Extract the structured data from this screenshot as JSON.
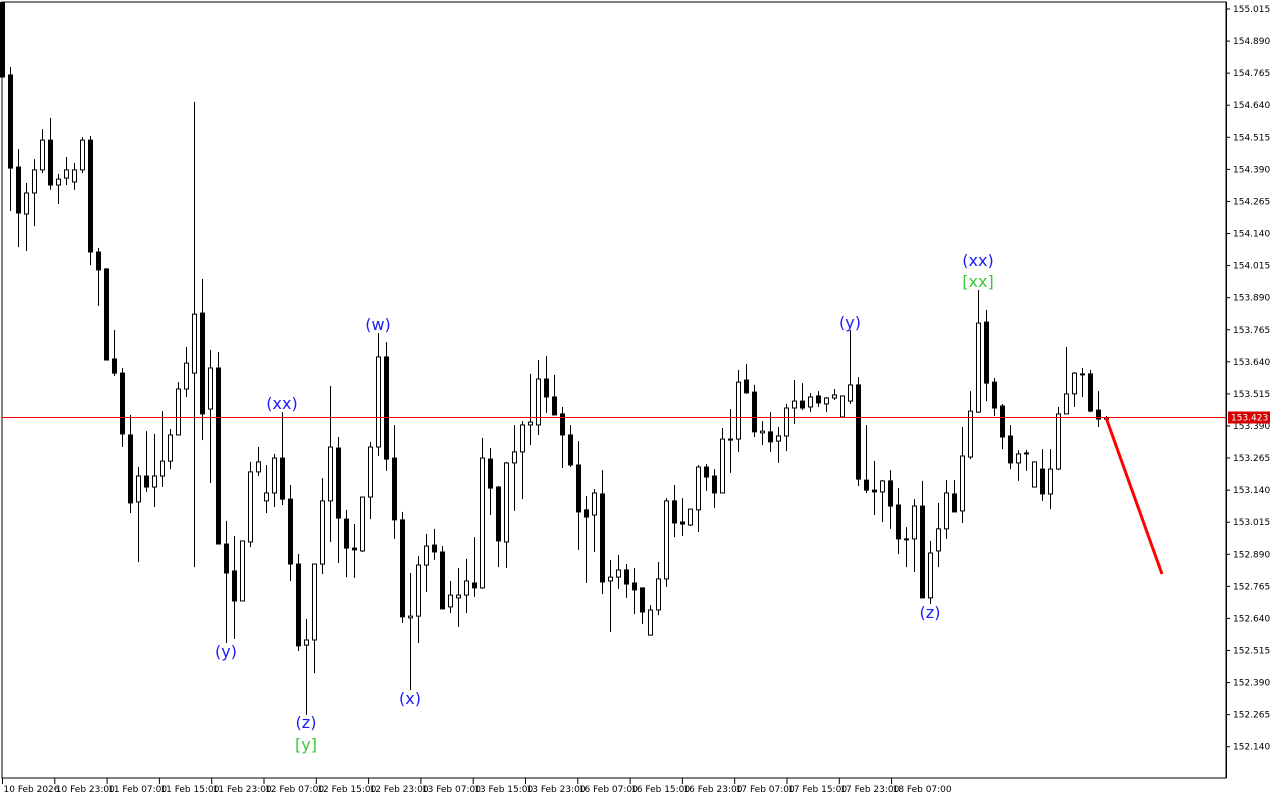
{
  "chart_data": {
    "type": "candlestick",
    "y_axis": {
      "ticks": [
        "155.015",
        "154.890",
        "154.765",
        "154.640",
        "154.515",
        "154.390",
        "154.265",
        "154.140",
        "154.015",
        "153.890",
        "153.765",
        "153.640",
        "153.515",
        "153.390",
        "153.265",
        "153.140",
        "153.015",
        "152.890",
        "152.765",
        "152.640",
        "152.515",
        "152.390",
        "152.265",
        "152.140"
      ],
      "ylim": [
        152.05,
        155.05
      ]
    },
    "x_axis": {
      "ticks": [
        "10 Feb 2026",
        "10 Feb 23:00",
        "11 Feb 07:00",
        "11 Feb 15:00",
        "11 Feb 23:00",
        "12 Feb 07:00",
        "12 Feb 15:00",
        "12 Feb 23:00",
        "13 Feb 07:00",
        "13 Feb 15:00",
        "13 Feb 23:00",
        "16 Feb 07:00",
        "16 Feb 15:00",
        "16 Feb 23:00",
        "17 Feb 07:00",
        "17 Feb 15:00",
        "17 Feb 23:00",
        "18 Feb 07:00"
      ]
    },
    "current_price": {
      "value": 153.423,
      "label": "153.423",
      "color": "#ff0000"
    },
    "candle_colors": {
      "bull_fill": "#ffffff",
      "bear_fill": "#000000",
      "outline": "#000000"
    },
    "ohlc": [
      [
        155.04,
        155.04,
        154.75,
        154.75
      ],
      [
        154.758,
        154.789,
        154.228,
        154.395
      ],
      [
        154.399,
        154.469,
        154.087,
        154.22
      ],
      [
        154.216,
        154.337,
        154.072,
        154.298
      ],
      [
        154.298,
        154.43,
        154.169,
        154.388
      ],
      [
        154.388,
        154.547,
        154.376,
        154.504
      ],
      [
        154.504,
        154.59,
        154.31,
        154.329
      ],
      [
        154.329,
        154.372,
        154.255,
        154.352
      ],
      [
        154.356,
        154.438,
        154.329,
        154.388
      ],
      [
        154.341,
        154.415,
        154.31,
        154.388
      ],
      [
        154.388,
        154.516,
        154.376,
        154.504
      ],
      [
        154.504,
        154.52,
        154.017,
        154.068
      ],
      [
        154.068,
        154.084,
        153.858,
        153.998
      ],
      [
        154.002,
        154.005,
        153.647,
        153.647
      ],
      [
        153.651,
        153.764,
        153.585,
        153.596
      ],
      [
        153.596,
        153.616,
        153.308,
        153.359
      ],
      [
        153.355,
        153.433,
        153.051,
        153.09
      ],
      [
        153.094,
        153.23,
        152.86,
        153.195
      ],
      [
        153.195,
        153.37,
        153.133,
        153.152
      ],
      [
        153.152,
        153.359,
        153.074,
        153.195
      ],
      [
        153.195,
        153.448,
        153.152,
        153.253
      ],
      [
        153.253,
        153.378,
        153.222,
        153.355
      ],
      [
        153.355,
        153.561,
        153.355,
        153.534
      ],
      [
        153.534,
        153.698,
        153.503,
        153.635
      ],
      [
        153.596,
        154.653,
        152.84,
        153.826
      ],
      [
        153.83,
        153.963,
        153.335,
        153.437
      ],
      [
        153.456,
        153.686,
        153.168,
        153.616
      ],
      [
        153.616,
        153.678,
        152.93,
        152.93
      ],
      [
        152.93,
        153.02,
        152.544,
        152.817
      ],
      [
        152.825,
        152.961,
        152.56,
        152.708
      ],
      [
        152.708,
        152.942,
        152.708,
        152.942
      ],
      [
        152.938,
        153.25,
        152.918,
        153.211
      ],
      [
        153.211,
        153.308,
        153.195,
        153.25
      ],
      [
        153.098,
        153.238,
        153.051,
        153.129
      ],
      [
        153.129,
        153.281,
        153.074,
        153.265
      ],
      [
        153.265,
        153.444,
        153.082,
        153.105
      ],
      [
        153.105,
        153.16,
        152.786,
        152.852
      ],
      [
        152.852,
        152.891,
        152.513,
        152.533
      ],
      [
        152.536,
        152.638,
        152.264,
        152.556
      ],
      [
        152.556,
        152.852,
        152.427,
        152.852
      ],
      [
        152.852,
        153.187,
        152.813,
        153.098
      ],
      [
        153.098,
        153.546,
        152.938,
        153.308
      ],
      [
        153.304,
        153.347,
        152.856,
        153.031
      ],
      [
        153.027,
        153.063,
        152.801,
        152.914
      ],
      [
        152.914,
        153.008,
        152.798,
        152.907
      ],
      [
        152.903,
        153.113,
        152.899,
        153.113
      ],
      [
        153.113,
        153.328,
        153.027,
        153.308
      ],
      [
        153.308,
        153.752,
        153.273,
        153.659
      ],
      [
        153.659,
        153.717,
        153.215,
        153.261
      ],
      [
        153.265,
        153.394,
        152.95,
        153.024
      ],
      [
        153.024,
        153.055,
        152.622,
        152.646
      ],
      [
        152.642,
        152.817,
        152.361,
        152.649
      ],
      [
        152.649,
        152.883,
        152.544,
        152.848
      ],
      [
        152.848,
        152.969,
        152.743,
        152.922
      ],
      [
        152.926,
        152.989,
        152.868,
        152.899
      ],
      [
        152.899,
        152.922,
        152.677,
        152.677
      ],
      [
        152.685,
        152.786,
        152.661,
        152.731
      ],
      [
        152.72,
        152.837,
        152.607,
        152.731
      ],
      [
        152.731,
        152.872,
        152.661,
        152.786
      ],
      [
        152.778,
        152.957,
        152.724,
        152.759
      ],
      [
        152.759,
        153.343,
        152.755,
        153.265
      ],
      [
        153.261,
        153.304,
        153.043,
        153.148
      ],
      [
        153.152,
        153.156,
        152.84,
        152.942
      ],
      [
        152.938,
        153.25,
        152.837,
        153.246
      ],
      [
        153.246,
        153.394,
        153.059,
        153.289
      ],
      [
        153.289,
        153.409,
        153.105,
        153.394
      ],
      [
        153.394,
        153.593,
        153.316,
        153.405
      ],
      [
        153.394,
        153.647,
        153.355,
        153.573
      ],
      [
        153.573,
        153.663,
        153.441,
        153.503
      ],
      [
        153.503,
        153.589,
        153.433,
        153.433
      ],
      [
        153.437,
        153.464,
        153.226,
        153.355
      ],
      [
        153.355,
        153.394,
        153.23,
        153.238
      ],
      [
        153.238,
        153.331,
        152.907,
        153.055
      ],
      [
        153.063,
        153.117,
        152.778,
        153.035
      ],
      [
        153.043,
        153.144,
        152.899,
        153.129
      ],
      [
        153.125,
        153.218,
        152.735,
        152.782
      ],
      [
        152.786,
        152.868,
        152.587,
        152.801
      ],
      [
        152.801,
        152.887,
        152.755,
        152.829
      ],
      [
        152.829,
        152.852,
        152.72,
        152.774
      ],
      [
        152.778,
        152.837,
        152.657,
        152.751
      ],
      [
        152.759,
        152.759,
        152.618,
        152.665
      ],
      [
        152.575,
        152.692,
        152.575,
        152.673
      ],
      [
        152.673,
        152.86,
        152.653,
        152.794
      ],
      [
        152.794,
        153.109,
        152.763,
        153.098
      ],
      [
        153.098,
        153.16,
        152.957,
        153.012
      ],
      [
        153.016,
        153.109,
        152.961,
        153.008
      ],
      [
        153.004,
        153.066,
        153.0,
        153.066
      ],
      [
        153.063,
        153.238,
        152.977,
        153.23
      ],
      [
        153.23,
        153.242,
        153.137,
        153.191
      ],
      [
        153.195,
        153.222,
        153.07,
        153.129
      ],
      [
        153.129,
        153.382,
        153.129,
        153.339
      ],
      [
        153.339,
        153.456,
        153.207,
        153.339
      ],
      [
        153.339,
        153.608,
        153.289,
        153.561
      ],
      [
        153.569,
        153.632,
        153.515,
        153.519
      ],
      [
        153.522,
        153.55,
        153.347,
        153.367
      ],
      [
        153.363,
        153.409,
        153.316,
        153.37
      ],
      [
        153.367,
        153.444,
        153.289,
        153.328
      ],
      [
        153.331,
        153.386,
        153.246,
        153.351
      ],
      [
        153.351,
        153.476,
        153.292,
        153.46
      ],
      [
        153.46,
        153.569,
        153.398,
        153.487
      ],
      [
        153.487,
        153.557,
        153.452,
        153.46
      ],
      [
        153.464,
        153.518,
        153.444,
        153.503
      ],
      [
        153.507,
        153.526,
        153.464,
        153.48
      ],
      [
        153.476,
        153.503,
        153.444,
        153.499
      ],
      [
        153.499,
        153.534,
        153.491,
        153.511
      ],
      [
        153.425,
        153.507,
        153.425,
        153.507
      ],
      [
        153.487,
        153.764,
        153.476,
        153.55
      ],
      [
        153.55,
        153.581,
        153.156,
        153.183
      ],
      [
        153.179,
        153.394,
        153.129,
        153.14
      ],
      [
        153.14,
        153.254,
        153.043,
        153.133
      ],
      [
        153.133,
        153.179,
        153.016,
        153.176
      ],
      [
        153.176,
        153.218,
        152.989,
        153.078
      ],
      [
        153.082,
        153.148,
        152.891,
        152.95
      ],
      [
        152.95,
        152.996,
        152.84,
        152.95
      ],
      [
        152.95,
        153.105,
        152.821,
        153.078
      ],
      [
        153.078,
        153.176,
        152.72,
        152.72
      ],
      [
        152.72,
        152.942,
        152.696,
        152.895
      ],
      [
        152.903,
        153.09,
        152.84,
        152.989
      ],
      [
        152.989,
        153.179,
        152.95,
        153.129
      ],
      [
        153.125,
        153.179,
        153.055,
        153.055
      ],
      [
        153.059,
        153.386,
        153.012,
        153.273
      ],
      [
        153.269,
        153.526,
        153.261,
        153.448
      ],
      [
        153.444,
        153.92,
        153.441,
        153.791
      ],
      [
        153.795,
        153.842,
        153.487,
        153.557
      ],
      [
        153.561,
        153.577,
        153.429,
        153.46
      ],
      [
        153.468,
        153.476,
        153.3,
        153.347
      ],
      [
        153.351,
        153.394,
        153.222,
        153.246
      ],
      [
        153.246,
        153.296,
        153.176,
        153.281
      ],
      [
        153.285,
        153.296,
        153.215,
        153.285
      ],
      [
        153.152,
        153.25,
        153.152,
        153.25
      ],
      [
        153.222,
        153.3,
        153.098,
        153.125
      ],
      [
        153.125,
        153.3,
        153.066,
        153.222
      ],
      [
        153.222,
        153.464,
        153.218,
        153.437
      ],
      [
        153.437,
        153.698,
        153.437,
        153.515
      ],
      [
        153.515,
        153.6,
        153.464,
        153.596
      ],
      [
        153.593,
        153.616,
        153.503,
        153.593
      ],
      [
        153.593,
        153.608,
        153.444,
        153.448
      ],
      [
        153.452,
        153.526,
        153.386,
        153.417
      ],
      [
        153.417,
        153.429,
        153.413,
        153.423
      ]
    ],
    "forecast_line": {
      "from_price": 153.423,
      "to_price": 152.813,
      "color": "#ff0000"
    },
    "wave_labels": [
      {
        "text": "(y)",
        "color": "#1a1aff"
      },
      {
        "text": "(xx)",
        "color": "#1a1aff"
      },
      {
        "text": "(w)",
        "color": "#1a1aff"
      },
      {
        "text": "(z)",
        "color": "#1a1aff"
      },
      {
        "text": "[y]",
        "color": "#3cc83c"
      },
      {
        "text": "(x)",
        "color": "#1a1aff"
      },
      {
        "text": "(y)",
        "color": "#1a1aff"
      },
      {
        "text": "(xx)",
        "color": "#1a1aff"
      },
      {
        "text": "[xx]",
        "color": "#3cc83c"
      },
      {
        "text": "(z)",
        "color": "#1a1aff"
      }
    ]
  }
}
